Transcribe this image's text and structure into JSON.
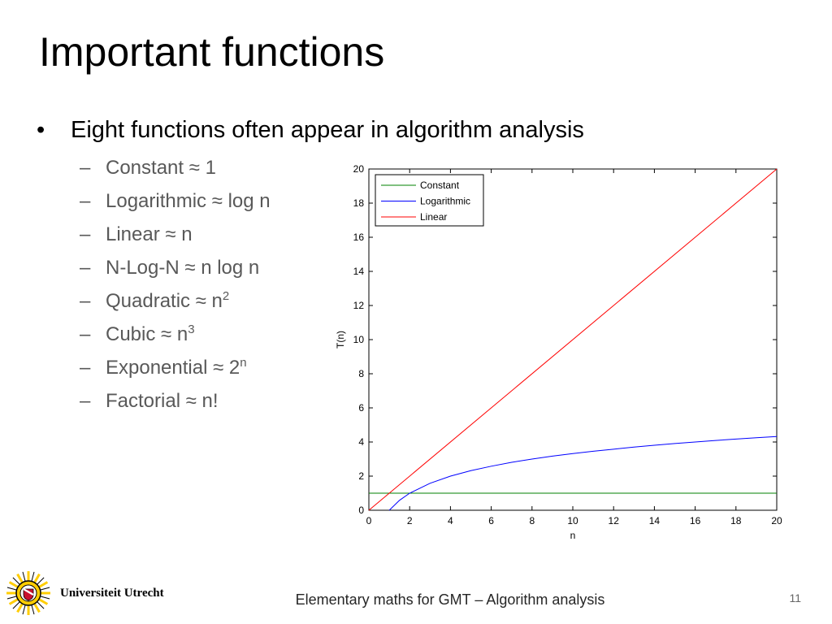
{
  "slide": {
    "title": "Important functions",
    "bullet": "Eight functions often appear in algorithm analysis",
    "bullet_symbol": "•",
    "dash_symbol": "–",
    "items": [
      {
        "label": "Constant  ≈ 1",
        "sup": ""
      },
      {
        "label": "Logarithmic  ≈ log n",
        "sup": ""
      },
      {
        "label": "Linear ≈ n",
        "sup": ""
      },
      {
        "label": "N-Log-N ≈ n log n",
        "sup": ""
      },
      {
        "label": "Quadratic ≈ n",
        "sup": "2"
      },
      {
        "label": "Cubic ≈ n",
        "sup": "3"
      },
      {
        "label": "Exponential ≈ 2",
        "sup": "n"
      },
      {
        "label": "Factorial ≈ n!",
        "sup": ""
      }
    ],
    "footer": "Elementary maths for GMT – Algorithm analysis",
    "page_number": "11",
    "logo_text": "Universiteit Utrecht"
  },
  "chart_data": {
    "type": "line",
    "title": "",
    "xlabel": "n",
    "ylabel": "T(n)",
    "xlim": [
      0,
      20
    ],
    "ylim": [
      0,
      20
    ],
    "xticks": [
      0,
      2,
      4,
      6,
      8,
      10,
      12,
      14,
      16,
      18,
      20
    ],
    "yticks": [
      0,
      2,
      4,
      6,
      8,
      10,
      12,
      14,
      16,
      18,
      20
    ],
    "grid": false,
    "legend_position": "top-left",
    "series": [
      {
        "name": "Constant",
        "color": "#008000",
        "x": [
          0,
          20
        ],
        "y": [
          1,
          1
        ]
      },
      {
        "name": "Logarithmic",
        "color": "#0000ff",
        "x": [
          1,
          1.5,
          2,
          3,
          4,
          5,
          6,
          7,
          8,
          9,
          10,
          11,
          12,
          13,
          14,
          15,
          16,
          17,
          18,
          19,
          20
        ],
        "y": [
          0,
          0.58,
          1,
          1.58,
          2,
          2.32,
          2.58,
          2.81,
          3,
          3.17,
          3.32,
          3.46,
          3.58,
          3.7,
          3.81,
          3.91,
          4,
          4.09,
          4.17,
          4.25,
          4.32
        ]
      },
      {
        "name": "Linear",
        "color": "#ff0000",
        "x": [
          0,
          20
        ],
        "y": [
          0,
          20
        ]
      }
    ]
  }
}
